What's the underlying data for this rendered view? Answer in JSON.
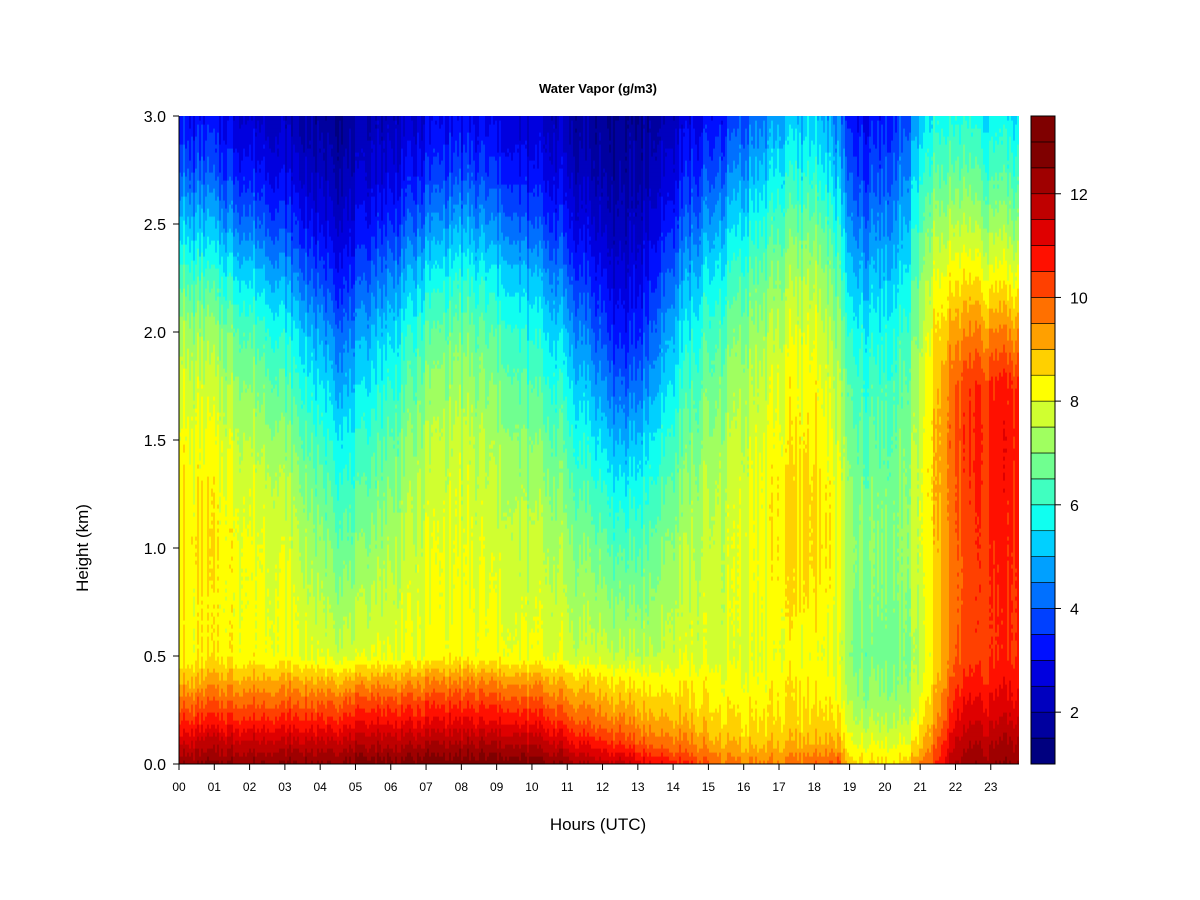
{
  "chart_data": {
    "type": "heatmap",
    "title": "Water Vapor (g/m3)",
    "xlabel": "Hours (UTC)",
    "ylabel": "Height (km)",
    "xlim": [
      0,
      23.8
    ],
    "ylim": [
      0.0,
      3.0
    ],
    "x_ticks": [
      {
        "value": 0,
        "label": "00"
      },
      {
        "value": 1,
        "label": "01"
      },
      {
        "value": 2,
        "label": "02"
      },
      {
        "value": 3,
        "label": "03"
      },
      {
        "value": 4,
        "label": "04"
      },
      {
        "value": 5,
        "label": "05"
      },
      {
        "value": 6,
        "label": "06"
      },
      {
        "value": 7,
        "label": "07"
      },
      {
        "value": 8,
        "label": "08"
      },
      {
        "value": 9,
        "label": "09"
      },
      {
        "value": 10,
        "label": "10"
      },
      {
        "value": 11,
        "label": "11"
      },
      {
        "value": 12,
        "label": "12"
      },
      {
        "value": 13,
        "label": "13"
      },
      {
        "value": 14,
        "label": "14"
      },
      {
        "value": 15,
        "label": "15"
      },
      {
        "value": 16,
        "label": "16"
      },
      {
        "value": 17,
        "label": "17"
      },
      {
        "value": 18,
        "label": "18"
      },
      {
        "value": 19,
        "label": "19"
      },
      {
        "value": 20,
        "label": "20"
      },
      {
        "value": 21,
        "label": "21"
      },
      {
        "value": 22,
        "label": "22"
      },
      {
        "value": 23,
        "label": "23"
      }
    ],
    "y_ticks": [
      {
        "value": 0.0,
        "label": "0.0"
      },
      {
        "value": 0.5,
        "label": "0.5"
      },
      {
        "value": 1.0,
        "label": "1.0"
      },
      {
        "value": 1.5,
        "label": "1.5"
      },
      {
        "value": 2.0,
        "label": "2.0"
      },
      {
        "value": 2.5,
        "label": "2.5"
      },
      {
        "value": 3.0,
        "label": "3.0"
      }
    ],
    "colorbar": {
      "min": 1.0,
      "max": 13.5,
      "step": 0.5,
      "ticks": [
        {
          "value": 2,
          "label": "2"
        },
        {
          "value": 4,
          "label": "4"
        },
        {
          "value": 6,
          "label": "6"
        },
        {
          "value": 8,
          "label": "8"
        },
        {
          "value": 10,
          "label": "10"
        },
        {
          "value": 12,
          "label": "12"
        }
      ],
      "colors": [
        "#00007f",
        "#00009f",
        "#0000bf",
        "#0000df",
        "#0010ff",
        "#0040ff",
        "#0070ff",
        "#00a0ff",
        "#00d0ff",
        "#10fff0",
        "#40ffc0",
        "#70ff90",
        "#a0ff60",
        "#d0ff30",
        "#ffff00",
        "#ffd000",
        "#ffa000",
        "#ff7000",
        "#ff4000",
        "#ff1000",
        "#df0000",
        "#bf0000",
        "#9f0000",
        "#7f0000",
        "#7f0000"
      ]
    },
    "grid": false,
    "hours": [
      0,
      1,
      2,
      3,
      4,
      4.7,
      5,
      6,
      7,
      8,
      9,
      10,
      11,
      12,
      12.6,
      13,
      14,
      15,
      16,
      17,
      18,
      18.7,
      19,
      19.5,
      20,
      20.5,
      21,
      21.4,
      22,
      22.5,
      23,
      23.8
    ],
    "heights": [
      0.0,
      0.1,
      0.2,
      0.3,
      0.4,
      0.5,
      0.75,
      1.0,
      1.25,
      1.5,
      1.75,
      2.0,
      2.25,
      2.5,
      2.75,
      3.0
    ],
    "values": [
      [
        12.5,
        12.5,
        12.5,
        12.5,
        12.6,
        12.6,
        12.7,
        12.7,
        12.8,
        12.8,
        12.9,
        12.8,
        12.3,
        11.8,
        11.6,
        11.3,
        10.7,
        10.0,
        9.6,
        9.6,
        9.8,
        10.0,
        8.6,
        8.6,
        8.5,
        8.6,
        9.5,
        10.3,
        12.0,
        12.4,
        12.5,
        12.6
      ],
      [
        11.5,
        11.6,
        11.6,
        11.6,
        11.7,
        11.7,
        11.8,
        11.8,
        11.9,
        11.9,
        12.0,
        11.8,
        11.2,
        10.6,
        10.3,
        10.1,
        9.6,
        9.2,
        8.9,
        8.9,
        9.0,
        9.0,
        8.0,
        7.9,
        7.9,
        8.0,
        8.8,
        9.7,
        11.5,
        11.9,
        12.0,
        12.1
      ],
      [
        10.5,
        10.6,
        10.6,
        10.6,
        10.7,
        10.7,
        10.8,
        10.9,
        10.9,
        11.0,
        11.0,
        10.8,
        10.2,
        9.7,
        9.5,
        9.3,
        9.0,
        8.7,
        8.5,
        8.6,
        8.6,
        8.5,
        7.6,
        7.4,
        7.4,
        7.5,
        8.3,
        9.2,
        11.0,
        11.4,
        11.5,
        11.6
      ],
      [
        9.7,
        9.8,
        9.8,
        9.8,
        9.9,
        9.9,
        10.0,
        10.1,
        10.1,
        10.2,
        10.2,
        10.0,
        9.5,
        9.1,
        8.9,
        8.8,
        8.6,
        8.4,
        8.3,
        8.4,
        8.4,
        8.2,
        7.3,
        7.1,
        7.1,
        7.2,
        8.0,
        8.9,
        10.6,
        11.0,
        11.1,
        11.2
      ],
      [
        8.9,
        9.0,
        9.0,
        9.0,
        9.0,
        8.9,
        9.0,
        9.1,
        9.2,
        9.3,
        9.3,
        9.1,
        8.8,
        8.5,
        8.3,
        8.3,
        8.2,
        8.2,
        8.1,
        8.3,
        8.3,
        8.0,
        7.1,
        6.9,
        6.9,
        7.0,
        7.8,
        8.7,
        10.2,
        10.6,
        10.8,
        10.9
      ],
      [
        8.3,
        8.3,
        8.2,
        8.1,
        8.0,
        7.8,
        7.8,
        8.0,
        8.1,
        8.2,
        8.2,
        8.0,
        7.8,
        7.7,
        7.5,
        7.6,
        7.7,
        7.8,
        7.9,
        8.1,
        8.1,
        7.8,
        6.9,
        6.7,
        6.7,
        6.9,
        7.6,
        8.5,
        9.9,
        10.3,
        10.5,
        10.6
      ],
      [
        8.3,
        8.2,
        8.1,
        8.0,
        7.6,
        7.2,
        7.3,
        7.7,
        7.9,
        8.0,
        8.0,
        7.8,
        7.5,
        7.2,
        6.9,
        7.0,
        7.4,
        7.7,
        8.0,
        8.3,
        8.4,
        8.0,
        7.0,
        6.8,
        6.8,
        7.0,
        7.8,
        8.6,
        9.8,
        10.3,
        10.5,
        10.6
      ],
      [
        8.5,
        8.3,
        8.1,
        7.8,
        7.2,
        6.7,
        6.8,
        7.4,
        7.8,
        7.9,
        7.8,
        7.6,
        7.2,
        6.7,
        6.3,
        6.5,
        7.1,
        7.6,
        8.0,
        8.4,
        8.6,
        8.1,
        7.1,
        6.9,
        6.9,
        7.1,
        7.9,
        8.7,
        9.8,
        10.3,
        10.6,
        10.7
      ],
      [
        8.4,
        8.2,
        7.9,
        7.5,
        6.8,
        6.2,
        6.3,
        7.0,
        7.6,
        7.8,
        7.6,
        7.3,
        6.8,
        6.1,
        5.6,
        5.9,
        6.7,
        7.4,
        7.9,
        8.4,
        8.6,
        8.0,
        6.9,
        6.7,
        6.7,
        7.0,
        7.9,
        8.8,
        9.9,
        10.4,
        10.7,
        10.8
      ],
      [
        8.2,
        7.9,
        7.5,
        7.0,
        6.3,
        5.6,
        5.8,
        6.6,
        7.3,
        7.6,
        7.3,
        6.9,
        6.3,
        5.4,
        4.8,
        5.2,
        6.2,
        7.1,
        7.7,
        8.2,
        8.4,
        7.7,
        6.7,
        6.4,
        6.5,
        6.8,
        7.8,
        8.8,
        10.0,
        10.5,
        10.8,
        10.9
      ],
      [
        7.9,
        7.5,
        7.0,
        6.4,
        5.6,
        4.9,
        5.2,
        6.0,
        6.9,
        7.2,
        6.9,
        6.4,
        5.7,
        4.6,
        3.9,
        4.3,
        5.6,
        6.7,
        7.4,
        8.0,
        8.2,
        7.4,
        6.3,
        6.1,
        6.2,
        6.5,
        7.6,
        8.7,
        9.9,
        10.4,
        10.6,
        10.7
      ],
      [
        7.4,
        7.0,
        6.4,
        5.7,
        4.9,
        4.2,
        4.5,
        5.4,
        6.3,
        6.7,
        6.4,
        5.8,
        5.0,
        3.8,
        3.1,
        3.5,
        5.0,
        6.2,
        7.0,
        7.6,
        7.9,
        7.0,
        5.8,
        5.6,
        5.7,
        6.1,
        7.3,
        8.4,
        9.2,
        9.5,
        9.6,
        9.5
      ],
      [
        6.5,
        6.0,
        5.4,
        4.7,
        3.9,
        3.3,
        3.6,
        4.5,
        5.4,
        5.9,
        5.6,
        5.0,
        4.1,
        3.1,
        2.5,
        2.9,
        4.2,
        5.5,
        6.4,
        7.1,
        7.4,
        6.5,
        5.1,
        4.9,
        5.1,
        5.5,
        6.9,
        7.9,
        8.3,
        8.4,
        8.3,
        8.2
      ],
      [
        5.3,
        4.8,
        4.2,
        3.6,
        3.0,
        2.6,
        2.8,
        3.5,
        4.3,
        4.8,
        4.5,
        3.9,
        3.2,
        2.4,
        2.0,
        2.3,
        3.4,
        4.6,
        5.6,
        6.4,
        6.7,
        5.8,
        4.4,
        4.2,
        4.4,
        4.9,
        6.4,
        7.2,
        7.4,
        7.4,
        7.3,
        7.2
      ],
      [
        4.1,
        3.7,
        3.2,
        2.7,
        2.3,
        2.0,
        2.2,
        2.7,
        3.3,
        3.7,
        3.5,
        3.0,
        2.5,
        1.9,
        1.7,
        1.9,
        2.7,
        3.7,
        4.7,
        5.6,
        5.9,
        5.0,
        3.7,
        3.5,
        3.8,
        4.3,
        5.8,
        6.4,
        6.5,
        6.5,
        6.4,
        6.3
      ],
      [
        3.2,
        2.9,
        2.5,
        2.1,
        1.8,
        1.6,
        1.8,
        2.2,
        2.6,
        2.9,
        2.8,
        2.4,
        2.0,
        1.6,
        1.4,
        1.6,
        2.2,
        3.0,
        3.9,
        4.8,
        5.2,
        4.3,
        3.1,
        3.0,
        3.2,
        3.7,
        5.1,
        5.7,
        5.8,
        5.8,
        5.7,
        5.6
      ]
    ]
  }
}
